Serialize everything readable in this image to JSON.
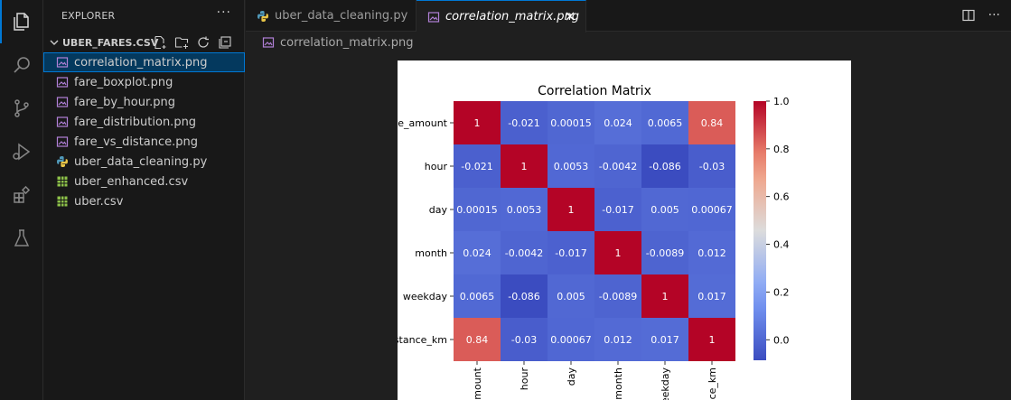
{
  "sidebar": {
    "title": "EXPLORER",
    "more": "···",
    "folder": "UBER_FARES.CSV",
    "files": [
      {
        "name": "correlation_matrix.png",
        "type": "image",
        "selected": true
      },
      {
        "name": "fare_boxplot.png",
        "type": "image"
      },
      {
        "name": "fare_by_hour.png",
        "type": "image"
      },
      {
        "name": "fare_distribution.png",
        "type": "image"
      },
      {
        "name": "fare_vs_distance.png",
        "type": "image"
      },
      {
        "name": "uber_data_cleaning.py",
        "type": "python"
      },
      {
        "name": "uber_enhanced.csv",
        "type": "csv"
      },
      {
        "name": "uber.csv",
        "type": "csv"
      }
    ]
  },
  "tabs": [
    {
      "label": "uber_data_cleaning.py",
      "active": false
    },
    {
      "label": "correlation_matrix.png",
      "active": true
    }
  ],
  "breadcrumb": "correlation_matrix.png",
  "colors": {
    "accent": "#0078d4",
    "image_icon": "#b180d7",
    "python_icon": "#519aba",
    "csv_icon": "#8dc149"
  },
  "chart_data": {
    "type": "heatmap",
    "title": "Correlation Matrix",
    "row_labels": [
      "e_amount",
      "hour",
      "day",
      "month",
      "weekday",
      "stance_km"
    ],
    "col_labels": [
      "mount",
      "hour",
      "day",
      "month",
      "eekday",
      "ce_km"
    ],
    "values": [
      [
        1,
        -0.021,
        0.00015,
        0.024,
        0.0065,
        0.84
      ],
      [
        -0.021,
        1,
        0.0053,
        -0.0042,
        -0.086,
        -0.03
      ],
      [
        0.00015,
        0.0053,
        1,
        -0.017,
        0.005,
        0.00067
      ],
      [
        0.024,
        -0.0042,
        -0.017,
        1,
        -0.0089,
        0.012
      ],
      [
        0.0065,
        -0.086,
        0.005,
        -0.0089,
        1,
        0.017
      ],
      [
        0.84,
        -0.03,
        0.00067,
        0.012,
        0.017,
        1
      ]
    ],
    "value_labels": [
      [
        "1",
        "-0.021",
        "0.00015",
        "0.024",
        "0.0065",
        "0.84"
      ],
      [
        "-0.021",
        "1",
        "0.0053",
        "-0.0042",
        "-0.086",
        "-0.03"
      ],
      [
        "0.00015",
        "0.0053",
        "1",
        "-0.017",
        "0.005",
        "0.00067"
      ],
      [
        "0.024",
        "-0.0042",
        "-0.017",
        "1",
        "-0.0089",
        "0.012"
      ],
      [
        "0.0065",
        "-0.086",
        "0.005",
        "-0.0089",
        "1",
        "0.017"
      ],
      [
        "0.84",
        "-0.03",
        "0.00067",
        "0.012",
        "0.017",
        "1"
      ]
    ],
    "colormap": "coolwarm",
    "vmin": -0.086,
    "vmax": 1,
    "colorbar_ticks": [
      {
        "value": 1.0,
        "label": "1.0"
      },
      {
        "value": 0.8,
        "label": "0.8"
      },
      {
        "value": 0.6,
        "label": "0.6"
      },
      {
        "value": 0.4,
        "label": "0.4"
      },
      {
        "value": 0.2,
        "label": "0.2"
      },
      {
        "value": 0.0,
        "label": "0.0"
      }
    ]
  }
}
